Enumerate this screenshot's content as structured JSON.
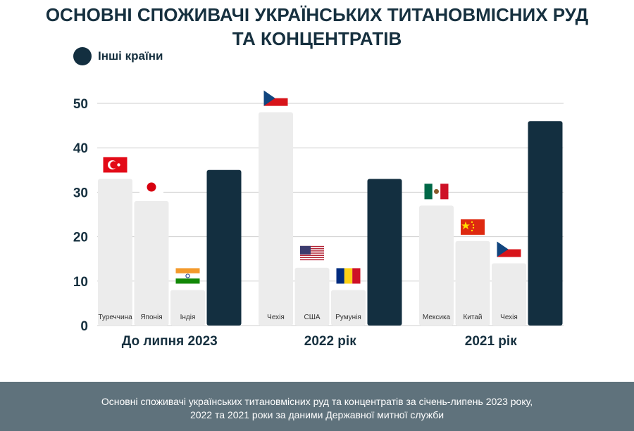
{
  "title_line1": "ОСНОВНІ СПОЖИВАЧІ УКРАЇНСЬКИХ ТИТАНОВМІСНИХ РУД",
  "title_line2": "ТА КОНЦЕНТРАТІВ",
  "legend": {
    "label": "Інші країни",
    "color": "#132f40"
  },
  "footer": {
    "line1": "Основні споживачі українських титановмісних руд та концентратів за січень-липень 2023 року,",
    "line2": "2022 та 2021 роки за даними Державної митної служби"
  },
  "colors": {
    "country_bar": "#ececec",
    "other_bar": "#132f40",
    "grid": "#cfcfcf",
    "text": "#16303f"
  },
  "chart_data": {
    "type": "bar",
    "ylim": [
      0,
      50
    ],
    "yticks": [
      0,
      10,
      20,
      30,
      40,
      50
    ],
    "grid": true,
    "legend_position": "top-left",
    "groups": [
      {
        "label": "До липня 2023",
        "bars": [
          {
            "label": "Туреччина",
            "value": 33,
            "flag": "turkey-flag-icon"
          },
          {
            "label": "Японія",
            "value": 28,
            "flag": "japan-flag-icon"
          },
          {
            "label": "Індія",
            "value": 8,
            "flag": "india-flag-icon"
          },
          {
            "label": "",
            "value": 35,
            "other": true
          }
        ]
      },
      {
        "label": "2022 рік",
        "bars": [
          {
            "label": "Чехія",
            "value": 48,
            "flag": "czech-flag-icon"
          },
          {
            "label": "США",
            "value": 13,
            "flag": "usa-flag-icon"
          },
          {
            "label": "Румунія",
            "value": 8,
            "flag": "romania-flag-icon"
          },
          {
            "label": "",
            "value": 33,
            "other": true
          }
        ]
      },
      {
        "label": "2021 рік",
        "bars": [
          {
            "label": "Мексика",
            "value": 27,
            "flag": "mexico-flag-icon"
          },
          {
            "label": "Китай",
            "value": 19,
            "flag": "china-flag-icon"
          },
          {
            "label": "Чехія",
            "value": 14,
            "flag": "czech-flag-icon"
          },
          {
            "label": "",
            "value": 46,
            "other": true
          }
        ]
      }
    ]
  }
}
